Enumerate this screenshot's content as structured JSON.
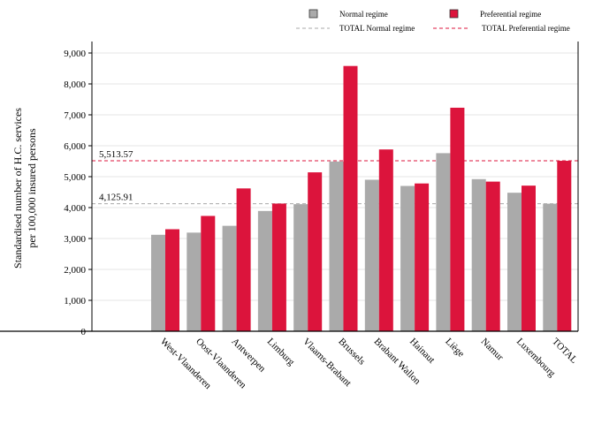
{
  "chart_data": {
    "type": "bar",
    "categories": [
      "West-Vlaanderen",
      "Oost-Vlaanderen",
      "Antwerpen",
      "Limburg",
      "Vlaams-Brabant",
      "Brussels",
      "Brabant Wallon",
      "Hainaut",
      "Liège",
      "Namur",
      "Luxembourg",
      "TOTAL"
    ],
    "series": [
      {
        "name": "Normal regime",
        "color": "#aaaaaa",
        "values": [
          3120,
          3190,
          3410,
          3890,
          4110,
          5490,
          4900,
          4700,
          5760,
          4920,
          4480,
          4125.91
        ]
      },
      {
        "name": "Preferential regime",
        "color": "#dc143c",
        "values": [
          3300,
          3730,
          4620,
          4130,
          5140,
          8580,
          5880,
          4780,
          7230,
          4840,
          4710,
          5513.57
        ]
      }
    ],
    "reference_lines": [
      {
        "name": "TOTAL Normal regime",
        "value": 4125.91,
        "label": "4,125.91",
        "color": "#aaaaaa",
        "style": "dashed"
      },
      {
        "name": "TOTAL Preferential regime",
        "value": 5513.57,
        "label": "5,513.57",
        "color": "#dc143c",
        "style": "dashed"
      }
    ],
    "ylabel": "Standardised number of H.C. services per 100,000 insured persons",
    "ylabel_lines": [
      "Standardised number of H.C. services",
      "per 100,000 insured persons"
    ],
    "ylim": [
      0,
      9000
    ],
    "yticks": [
      0,
      1000,
      2000,
      3000,
      4000,
      5000,
      6000,
      7000,
      8000,
      9000
    ],
    "ytick_labels": [
      "0",
      "1,000",
      "2,000",
      "3,000",
      "4,000",
      "5,000",
      "6,000",
      "7,000",
      "8,000",
      "9,000"
    ],
    "grid": true,
    "legend_position": "top-right"
  }
}
